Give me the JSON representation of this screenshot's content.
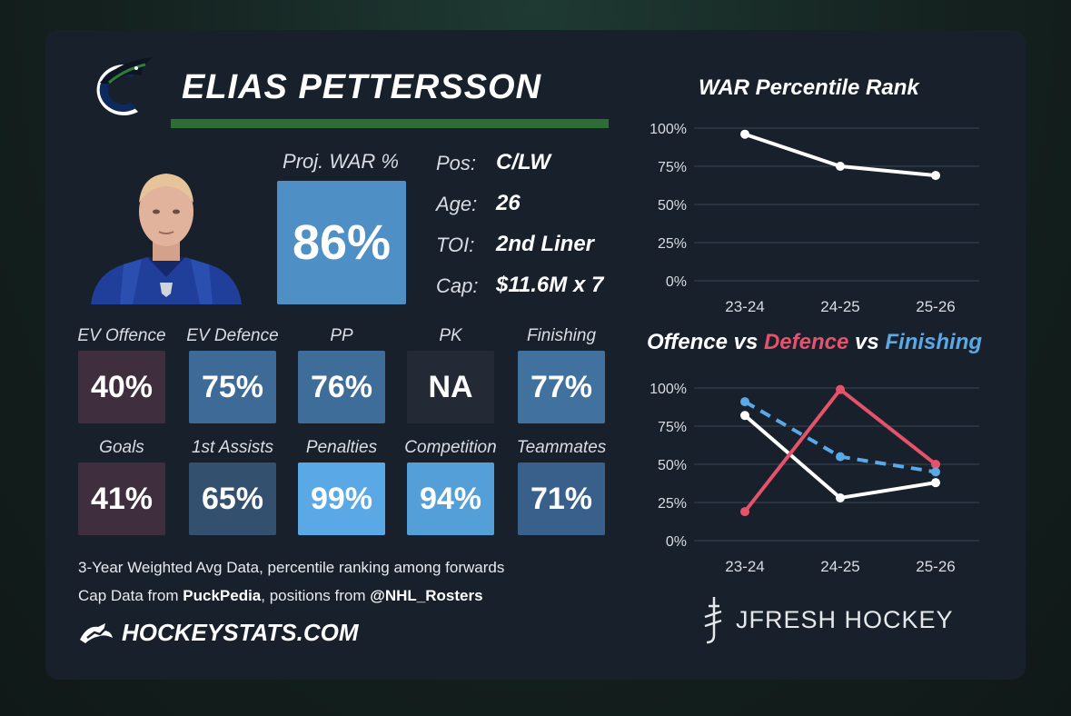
{
  "player": {
    "name": "ELIAS PETTERSSON",
    "proj_war_label": "Proj. WAR %",
    "proj_war_value": "86%",
    "info": [
      {
        "label": "Pos:",
        "value": "C/LW"
      },
      {
        "label": "Age:",
        "value": "26"
      },
      {
        "label": "TOI:",
        "value": "2nd Liner"
      },
      {
        "label": "Cap:",
        "value": "$11.6M x 7"
      }
    ]
  },
  "stats": [
    {
      "label": "EV Offence",
      "value": "40%",
      "color": "#3f2f3e"
    },
    {
      "label": "EV Defence",
      "value": "75%",
      "color": "#3d6a96"
    },
    {
      "label": "PP",
      "value": "76%",
      "color": "#3f6d9a"
    },
    {
      "label": "PK",
      "value": "NA",
      "color": "#232a35"
    },
    {
      "label": "Finishing",
      "value": "77%",
      "color": "#41719f"
    },
    {
      "label": "Goals",
      "value": "41%",
      "color": "#3f2f3e"
    },
    {
      "label": "1st Assists",
      "value": "65%",
      "color": "#34506f"
    },
    {
      "label": "Penalties",
      "value": "99%",
      "color": "#5aa9e6"
    },
    {
      "label": "Competition",
      "value": "94%",
      "color": "#559fd8"
    },
    {
      "label": "Teammates",
      "value": "71%",
      "color": "#39608a"
    }
  ],
  "footer": {
    "line1": "3-Year Weighted Avg Data, percentile ranking among forwards",
    "line2_prefix": "Cap Data from ",
    "line2_source": "PuckPedia",
    "line2_mid": ", positions from ",
    "line2_handle": "@NHL_Rosters",
    "brand": "HOCKEYSTATS.COM"
  },
  "jfresh_brand": "JFRESH HOCKEY",
  "chart_titles": {
    "title_1": "WAR Percentile Rank",
    "title_2_part1": "Offence",
    "title_2_vs1": " vs ",
    "title_2_part2": "Defence",
    "title_2_vs2": " vs ",
    "title_2_part3": "Finishing"
  },
  "chart_data": [
    {
      "type": "line",
      "title": "WAR Percentile Rank",
      "categories": [
        "23-24",
        "24-25",
        "25-26"
      ],
      "series": [
        {
          "values": [
            96,
            75,
            69
          ],
          "color": "#ffffff",
          "dashed": false
        }
      ],
      "ylim": [
        0,
        100
      ],
      "yticks": [
        "0%",
        "25%",
        "50%",
        "75%",
        "100%"
      ],
      "grid": true
    },
    {
      "type": "line",
      "title": "Offence vs Defence vs Finishing",
      "categories": [
        "23-24",
        "24-25",
        "25-26"
      ],
      "series": [
        {
          "name": "Offence",
          "values": [
            82,
            28,
            38
          ],
          "color": "#ffffff",
          "dashed": false
        },
        {
          "name": "Defence",
          "values": [
            19,
            99,
            50
          ],
          "color": "#e5526b",
          "dashed": false
        },
        {
          "name": "Finishing",
          "values": [
            91,
            55,
            45
          ],
          "color": "#5aa9e6",
          "dashed": true
        }
      ],
      "ylim": [
        0,
        100
      ],
      "yticks": [
        "0%",
        "25%",
        "50%",
        "75%",
        "100%"
      ],
      "grid": true
    }
  ]
}
